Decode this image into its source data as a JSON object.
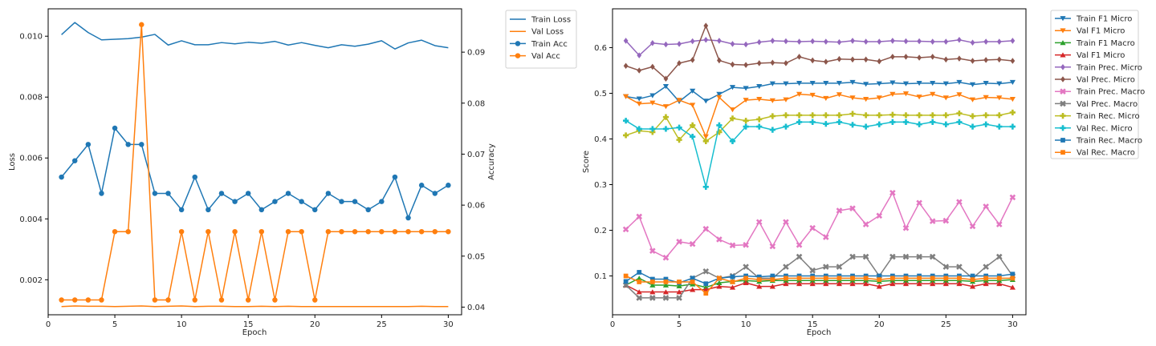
{
  "chart_data": [
    {
      "type": "line",
      "xlabel": "Epoch",
      "ylabel": "Loss",
      "ylabel_right": "Accuracy",
      "xlim": [
        0,
        31
      ],
      "ylim": [
        0.00085,
        0.0109
      ],
      "ylim_right": [
        0.0385,
        0.0985
      ],
      "x_ticks": [
        0,
        5,
        10,
        15,
        20,
        25,
        30
      ],
      "y_ticks": [
        0.002,
        0.004,
        0.006,
        0.008,
        0.01
      ],
      "y_tick_labels": [
        "0.002",
        "0.004",
        "0.006",
        "0.008",
        "0.010"
      ],
      "y_right_ticks": [
        0.04,
        0.05,
        0.06,
        0.07,
        0.08,
        0.09
      ],
      "y_right_tick_labels": [
        "0.04",
        "0.05",
        "0.06",
        "0.07",
        "0.08",
        "0.09"
      ],
      "legend": "outside-right",
      "x": [
        1,
        2,
        3,
        4,
        5,
        6,
        7,
        8,
        9,
        10,
        11,
        12,
        13,
        14,
        15,
        16,
        17,
        18,
        19,
        20,
        21,
        22,
        23,
        24,
        25,
        26,
        27,
        28,
        29,
        30
      ],
      "series": [
        {
          "name": "Train Loss",
          "axis": "left",
          "color": "#1f77b4",
          "marker": "none",
          "values": [
            0.01005,
            0.01045,
            0.01012,
            0.00988,
            0.0099,
            0.00992,
            0.00997,
            0.01006,
            0.00971,
            0.00985,
            0.00972,
            0.00972,
            0.00979,
            0.00975,
            0.0098,
            0.00977,
            0.00983,
            0.00971,
            0.00979,
            0.0097,
            0.00962,
            0.00972,
            0.00967,
            0.00974,
            0.00985,
            0.00958,
            0.00978,
            0.00987,
            0.00969,
            0.00962
          ]
        },
        {
          "name": "Val Loss",
          "axis": "left",
          "color": "#ff7f0e",
          "marker": "none",
          "values": [
            0.00112,
            0.00114,
            0.00113,
            0.00113,
            0.00112,
            0.00113,
            0.00114,
            0.00112,
            0.00113,
            0.00114,
            0.00112,
            0.00113,
            0.00113,
            0.00112,
            0.00112,
            0.00113,
            0.00112,
            0.00113,
            0.00112,
            0.00112,
            0.00112,
            0.00112,
            0.00112,
            0.00112,
            0.00112,
            0.00112,
            0.00112,
            0.00113,
            0.00112,
            0.00112
          ]
        },
        {
          "name": "Train Acc",
          "axis": "right",
          "color": "#1f77b4",
          "marker": "circle",
          "values": [
            0.0655,
            0.0687,
            0.0719,
            0.0623,
            0.0751,
            0.0719,
            0.0719,
            0.0623,
            0.0623,
            0.0591,
            0.0655,
            0.0591,
            0.0623,
            0.0607,
            0.0623,
            0.0591,
            0.0607,
            0.0623,
            0.0607,
            0.0591,
            0.0623,
            0.0607,
            0.0607,
            0.0591,
            0.0607,
            0.0655,
            0.0575,
            0.0639,
            0.0623,
            0.0639
          ]
        },
        {
          "name": "Val Acc",
          "axis": "right",
          "color": "#ff7f0e",
          "marker": "circle",
          "values": [
            0.0414,
            0.0414,
            0.0414,
            0.0414,
            0.0548,
            0.0548,
            0.0954,
            0.0414,
            0.0414,
            0.0548,
            0.0414,
            0.0548,
            0.0414,
            0.0548,
            0.0414,
            0.0548,
            0.0414,
            0.0548,
            0.0548,
            0.0414,
            0.0548,
            0.0548,
            0.0548,
            0.0548,
            0.0548,
            0.0548,
            0.0548,
            0.0548,
            0.0548,
            0.0548
          ]
        }
      ]
    },
    {
      "type": "line",
      "xlabel": "Epoch",
      "ylabel": "Score",
      "xlim": [
        0,
        31
      ],
      "ylim": [
        0.015,
        0.685
      ],
      "x_ticks": [
        0,
        5,
        10,
        15,
        20,
        25,
        30
      ],
      "y_ticks": [
        0.1,
        0.2,
        0.3,
        0.4,
        0.5,
        0.6
      ],
      "y_tick_labels": [
        "0.1",
        "0.2",
        "0.3",
        "0.4",
        "0.5",
        "0.6"
      ],
      "legend": "outside-right",
      "x": [
        1,
        2,
        3,
        4,
        5,
        6,
        7,
        8,
        9,
        10,
        11,
        12,
        13,
        14,
        15,
        16,
        17,
        18,
        19,
        20,
        21,
        22,
        23,
        24,
        25,
        26,
        27,
        28,
        29,
        30
      ],
      "series": [
        {
          "name": "Train F1 Micro",
          "color": "#1f77b4",
          "marker": "triangle-down",
          "values": [
            0.493,
            0.488,
            0.495,
            0.515,
            0.482,
            0.505,
            0.483,
            0.498,
            0.513,
            0.511,
            0.515,
            0.521,
            0.521,
            0.522,
            0.522,
            0.522,
            0.522,
            0.524,
            0.52,
            0.521,
            0.523,
            0.521,
            0.522,
            0.522,
            0.521,
            0.524,
            0.519,
            0.522,
            0.521,
            0.524
          ]
        },
        {
          "name": "Val F1 Micro",
          "color": "#ff7f0e",
          "marker": "triangle-down",
          "values": [
            0.493,
            0.477,
            0.479,
            0.471,
            0.485,
            0.474,
            0.405,
            0.491,
            0.464,
            0.485,
            0.487,
            0.484,
            0.486,
            0.498,
            0.496,
            0.489,
            0.497,
            0.49,
            0.487,
            0.49,
            0.498,
            0.499,
            0.492,
            0.498,
            0.49,
            0.497,
            0.486,
            0.491,
            0.49,
            0.487
          ]
        },
        {
          "name": "Train F1 Macro",
          "color": "#2ca02c",
          "marker": "triangle-up",
          "values": [
            0.08,
            0.095,
            0.08,
            0.08,
            0.078,
            0.082,
            0.075,
            0.085,
            0.088,
            0.09,
            0.088,
            0.09,
            0.09,
            0.09,
            0.09,
            0.09,
            0.09,
            0.09,
            0.09,
            0.088,
            0.09,
            0.09,
            0.09,
            0.09,
            0.09,
            0.09,
            0.088,
            0.09,
            0.09,
            0.092
          ]
        },
        {
          "name": "Val F1 Micro",
          "color": "#d62728",
          "marker": "triangle-up",
          "values": [
            0.08,
            0.065,
            0.065,
            0.065,
            0.065,
            0.07,
            0.07,
            0.077,
            0.075,
            0.085,
            0.077,
            0.077,
            0.083,
            0.083,
            0.083,
            0.083,
            0.083,
            0.083,
            0.083,
            0.077,
            0.083,
            0.083,
            0.083,
            0.083,
            0.083,
            0.083,
            0.077,
            0.083,
            0.083,
            0.075
          ]
        },
        {
          "name": "Train Prec. Micro",
          "color": "#9467bd",
          "marker": "diamond",
          "values": [
            0.615,
            0.583,
            0.61,
            0.607,
            0.608,
            0.614,
            0.617,
            0.615,
            0.608,
            0.607,
            0.612,
            0.615,
            0.614,
            0.613,
            0.614,
            0.613,
            0.612,
            0.615,
            0.613,
            0.613,
            0.615,
            0.614,
            0.614,
            0.613,
            0.613,
            0.617,
            0.611,
            0.613,
            0.613,
            0.615
          ]
        },
        {
          "name": "Val Prec. Micro",
          "color": "#8c564b",
          "marker": "diamond",
          "values": [
            0.56,
            0.55,
            0.558,
            0.532,
            0.566,
            0.573,
            0.648,
            0.572,
            0.563,
            0.562,
            0.566,
            0.567,
            0.566,
            0.58,
            0.572,
            0.569,
            0.575,
            0.574,
            0.574,
            0.57,
            0.58,
            0.58,
            0.578,
            0.58,
            0.574,
            0.576,
            0.571,
            0.573,
            0.574,
            0.571
          ]
        },
        {
          "name": "Train Prec. Macro",
          "color": "#e377c2",
          "marker": "x",
          "values": [
            0.202,
            0.23,
            0.155,
            0.14,
            0.175,
            0.17,
            0.203,
            0.18,
            0.167,
            0.168,
            0.218,
            0.165,
            0.218,
            0.168,
            0.205,
            0.185,
            0.243,
            0.248,
            0.213,
            0.232,
            0.282,
            0.205,
            0.26,
            0.22,
            0.221,
            0.262,
            0.209,
            0.252,
            0.213,
            0.272
          ]
        },
        {
          "name": "Val Prec. Macro",
          "color": "#7f7f7f",
          "marker": "x",
          "values": [
            0.08,
            0.052,
            0.052,
            0.052,
            0.052,
            0.095,
            0.11,
            0.095,
            0.1,
            0.12,
            0.095,
            0.095,
            0.12,
            0.142,
            0.112,
            0.12,
            0.12,
            0.142,
            0.142,
            0.1,
            0.142,
            0.142,
            0.142,
            0.142,
            0.12,
            0.12,
            0.095,
            0.12,
            0.142,
            0.1
          ]
        },
        {
          "name": "Train Rec. Micro",
          "color": "#bcbd22",
          "marker": "plus",
          "values": [
            0.408,
            0.418,
            0.415,
            0.448,
            0.398,
            0.43,
            0.395,
            0.415,
            0.445,
            0.44,
            0.443,
            0.45,
            0.452,
            0.452,
            0.452,
            0.452,
            0.452,
            0.455,
            0.452,
            0.452,
            0.453,
            0.452,
            0.452,
            0.452,
            0.452,
            0.456,
            0.45,
            0.452,
            0.452,
            0.458
          ]
        },
        {
          "name": "Val Rec. Micro",
          "color": "#17becf",
          "marker": "plus",
          "values": [
            0.44,
            0.422,
            0.422,
            0.422,
            0.425,
            0.405,
            0.295,
            0.43,
            0.395,
            0.427,
            0.427,
            0.42,
            0.427,
            0.437,
            0.437,
            0.433,
            0.437,
            0.431,
            0.427,
            0.432,
            0.437,
            0.437,
            0.432,
            0.437,
            0.432,
            0.437,
            0.427,
            0.432,
            0.427,
            0.427
          ]
        },
        {
          "name": "Train Rec. Macro",
          "color": "#1f77b4",
          "marker": "square",
          "values": [
            0.088,
            0.108,
            0.093,
            0.093,
            0.085,
            0.095,
            0.083,
            0.095,
            0.098,
            0.1,
            0.098,
            0.1,
            0.1,
            0.1,
            0.1,
            0.1,
            0.1,
            0.1,
            0.1,
            0.1,
            0.1,
            0.1,
            0.1,
            0.1,
            0.1,
            0.1,
            0.1,
            0.1,
            0.1,
            0.104
          ]
        },
        {
          "name": "Val Rec. Macro",
          "color": "#ff7f0e",
          "marker": "square",
          "values": [
            0.1,
            0.087,
            0.087,
            0.087,
            0.087,
            0.087,
            0.062,
            0.095,
            0.087,
            0.095,
            0.092,
            0.092,
            0.095,
            0.095,
            0.095,
            0.095,
            0.095,
            0.095,
            0.095,
            0.092,
            0.095,
            0.095,
            0.095,
            0.095,
            0.095,
            0.095,
            0.092,
            0.095,
            0.095,
            0.095
          ]
        }
      ]
    }
  ]
}
